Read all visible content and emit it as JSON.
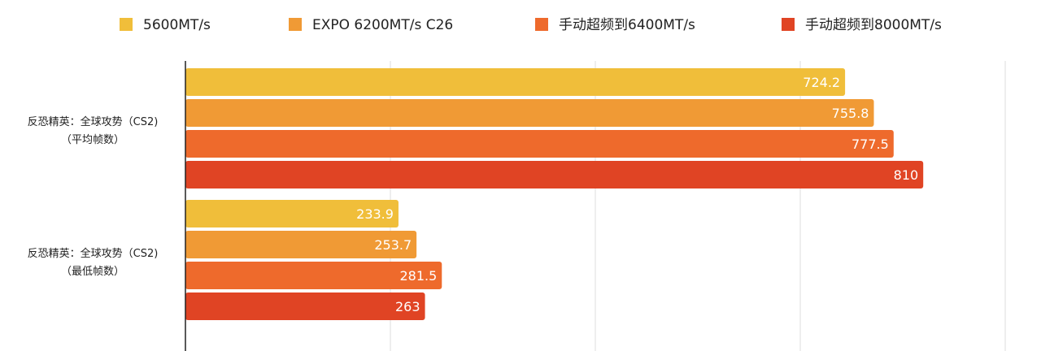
{
  "chart_data": {
    "type": "bar",
    "orientation": "horizontal",
    "categories": [
      [
        "反恐精英：全球攻势（CS2)",
        "（平均帧数）"
      ],
      [
        "反恐精英：全球攻势（CS2)",
        "（最低帧数）"
      ]
    ],
    "series": [
      {
        "name": "5600MT/s",
        "color": "#F0BE3A",
        "values": [
          724.2,
          233.9
        ]
      },
      {
        "name": "EXPO 6200MT/s C26",
        "color": "#F09A35",
        "values": [
          755.8,
          253.7
        ]
      },
      {
        "name": "手动超频到6400MT/s",
        "color": "#EE6A2C",
        "values": [
          777.5,
          281.5
        ]
      },
      {
        "name": "手动超频到8000MT/s",
        "color": "#E04424",
        "values": [
          810,
          263
        ]
      }
    ],
    "xlim": [
      0,
      900
    ],
    "grid": true,
    "legend": "top"
  }
}
